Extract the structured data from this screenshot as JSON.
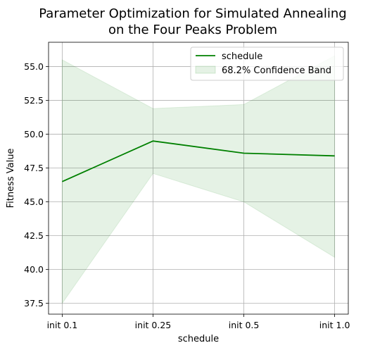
{
  "chart_data": {
    "type": "line",
    "title_line1": "Parameter Optimization for Simulated Annealing",
    "title_line2": "on the Four Peaks Problem",
    "xlabel": "schedule",
    "ylabel": "Fitness Value",
    "categories": [
      "init 0.1",
      "init 0.25",
      "init 0.5",
      "init 1.0"
    ],
    "ylim": [
      36.7,
      56.8
    ],
    "y_ticks": [
      37.5,
      40.0,
      42.5,
      45.0,
      47.5,
      50.0,
      52.5,
      55.0
    ],
    "y_tick_labels": [
      "37.5",
      "40.0",
      "42.5",
      "45.0",
      "47.5",
      "50.0",
      "52.5",
      "55.0"
    ],
    "grid": true,
    "legend_position": "top-right",
    "series": [
      {
        "name": "schedule",
        "values": [
          46.5,
          49.5,
          48.6,
          48.4
        ],
        "color": "#008000"
      }
    ],
    "band": {
      "name": "68.2% Confidence Band",
      "upper": [
        55.5,
        51.9,
        52.2,
        55.8
      ],
      "lower": [
        37.5,
        47.1,
        45.0,
        40.9
      ],
      "color": "#008000",
      "opacity": 0.1
    }
  }
}
